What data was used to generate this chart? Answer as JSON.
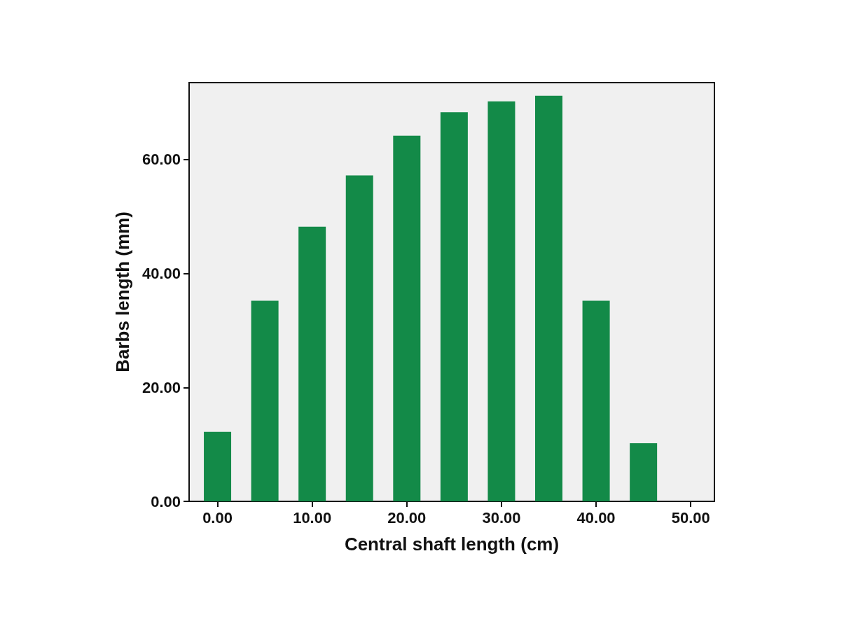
{
  "chart_data": {
    "type": "bar",
    "xlabel": "Central shaft length (cm)",
    "ylabel": "Barbs length (mm)",
    "x": [
      0,
      5,
      10,
      15,
      20,
      25,
      30,
      35,
      40,
      45
    ],
    "values": [
      12.2,
      35.2,
      48.2,
      57.2,
      64.2,
      68.3,
      70.2,
      71.2,
      35.2,
      10.2
    ],
    "color": "#138a48",
    "xlim": [
      -3,
      52.5
    ],
    "ylim": [
      0,
      73.5
    ],
    "xticks": [
      {
        "value": 0,
        "label": "0.00"
      },
      {
        "value": 10,
        "label": "10.00"
      },
      {
        "value": 20,
        "label": "20.00"
      },
      {
        "value": 30,
        "label": "30.00"
      },
      {
        "value": 40,
        "label": "40.00"
      },
      {
        "value": 50,
        "label": "50.00"
      }
    ],
    "yticks": [
      {
        "value": 0,
        "label": "0.00"
      },
      {
        "value": 20,
        "label": "20.00"
      },
      {
        "value": 40,
        "label": "40.00"
      },
      {
        "value": 60,
        "label": "60.00"
      }
    ],
    "grid": false
  }
}
